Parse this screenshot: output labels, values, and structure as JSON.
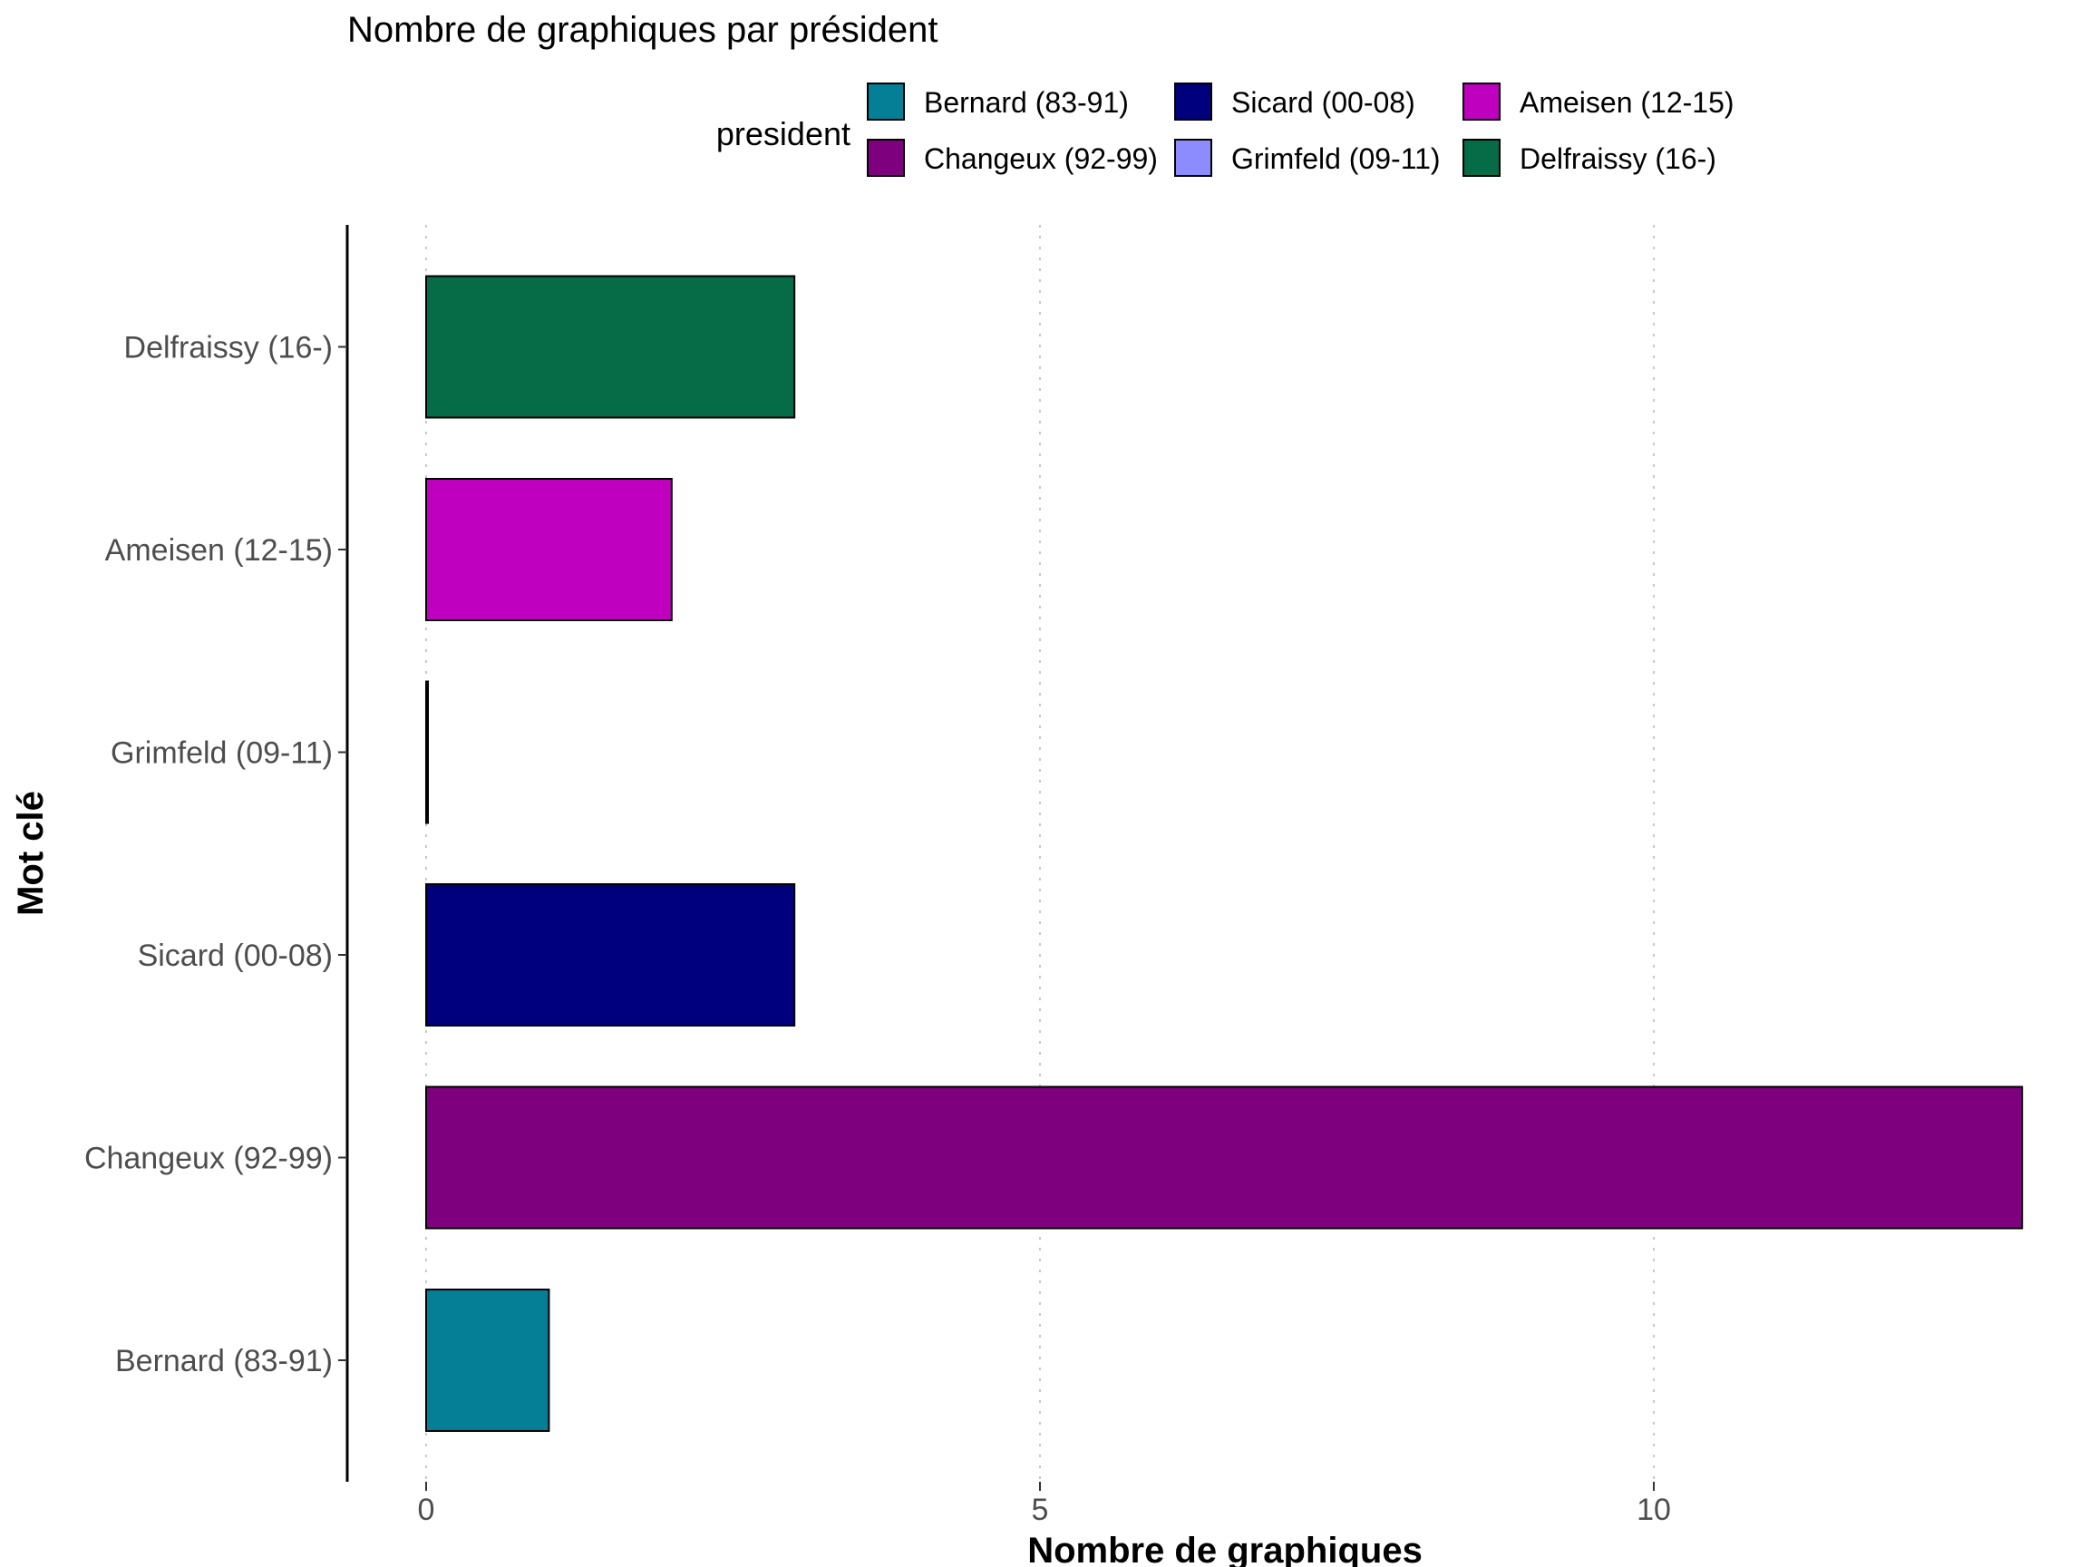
{
  "chart_data": {
    "type": "bar",
    "orientation": "horizontal",
    "title": "Nombre de graphiques par président",
    "xlabel": "Nombre de graphiques",
    "ylabel": "Mot clé",
    "xlim": [
      0,
      13
    ],
    "xticks": [
      0,
      5,
      10
    ],
    "grid": "vertical dotted",
    "legend": {
      "title": "president",
      "placement": "top",
      "entries": [
        {
          "label": "Bernard (83-91)",
          "color": "#057F96"
        },
        {
          "label": "Changeux (92-99)",
          "color": "#7F007F"
        },
        {
          "label": "Sicard (00-08)",
          "color": "#00007F"
        },
        {
          "label": "Grimfeld (09-11)",
          "color": "#8C8CFF"
        },
        {
          "label": "Ameisen (12-15)",
          "color": "#BF00BF"
        },
        {
          "label": "Delfraissy (16-)",
          "color": "#066B47"
        }
      ]
    },
    "categories": [
      "Bernard (83-91)",
      "Changeux (92-99)",
      "Sicard (00-08)",
      "Grimfeld (09-11)",
      "Ameisen (12-15)",
      "Delfraissy (16-)"
    ],
    "values": [
      1,
      13,
      3,
      0,
      2,
      3
    ],
    "colors": [
      "#057F96",
      "#7F007F",
      "#00007F",
      "#8C8CFF",
      "#BF00BF",
      "#066B47"
    ]
  }
}
